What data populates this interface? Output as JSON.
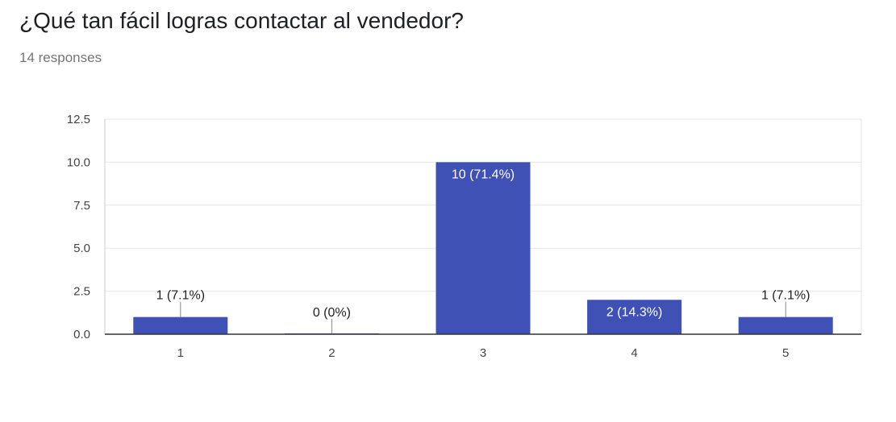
{
  "header": {
    "title": "¿Qué tan fácil logras contactar al vendedor?",
    "responses": "14 responses"
  },
  "chart_data": {
    "type": "bar",
    "categories": [
      "1",
      "2",
      "3",
      "4",
      "5"
    ],
    "values": [
      1,
      0,
      10,
      2,
      1
    ],
    "data_labels": [
      "1 (7.1%)",
      "0 (0%)",
      "10 (71.4%)",
      "2 (14.3%)",
      "1 (7.1%)"
    ],
    "yticks": [
      "0.0",
      "2.5",
      "5.0",
      "7.5",
      "10.0",
      "12.5"
    ],
    "ylim": [
      0,
      12.5
    ],
    "grid": true,
    "legend": "none",
    "bar_color": "#3f51b5",
    "grid_color": "#e6e6e6",
    "axis_color": "#333333"
  }
}
